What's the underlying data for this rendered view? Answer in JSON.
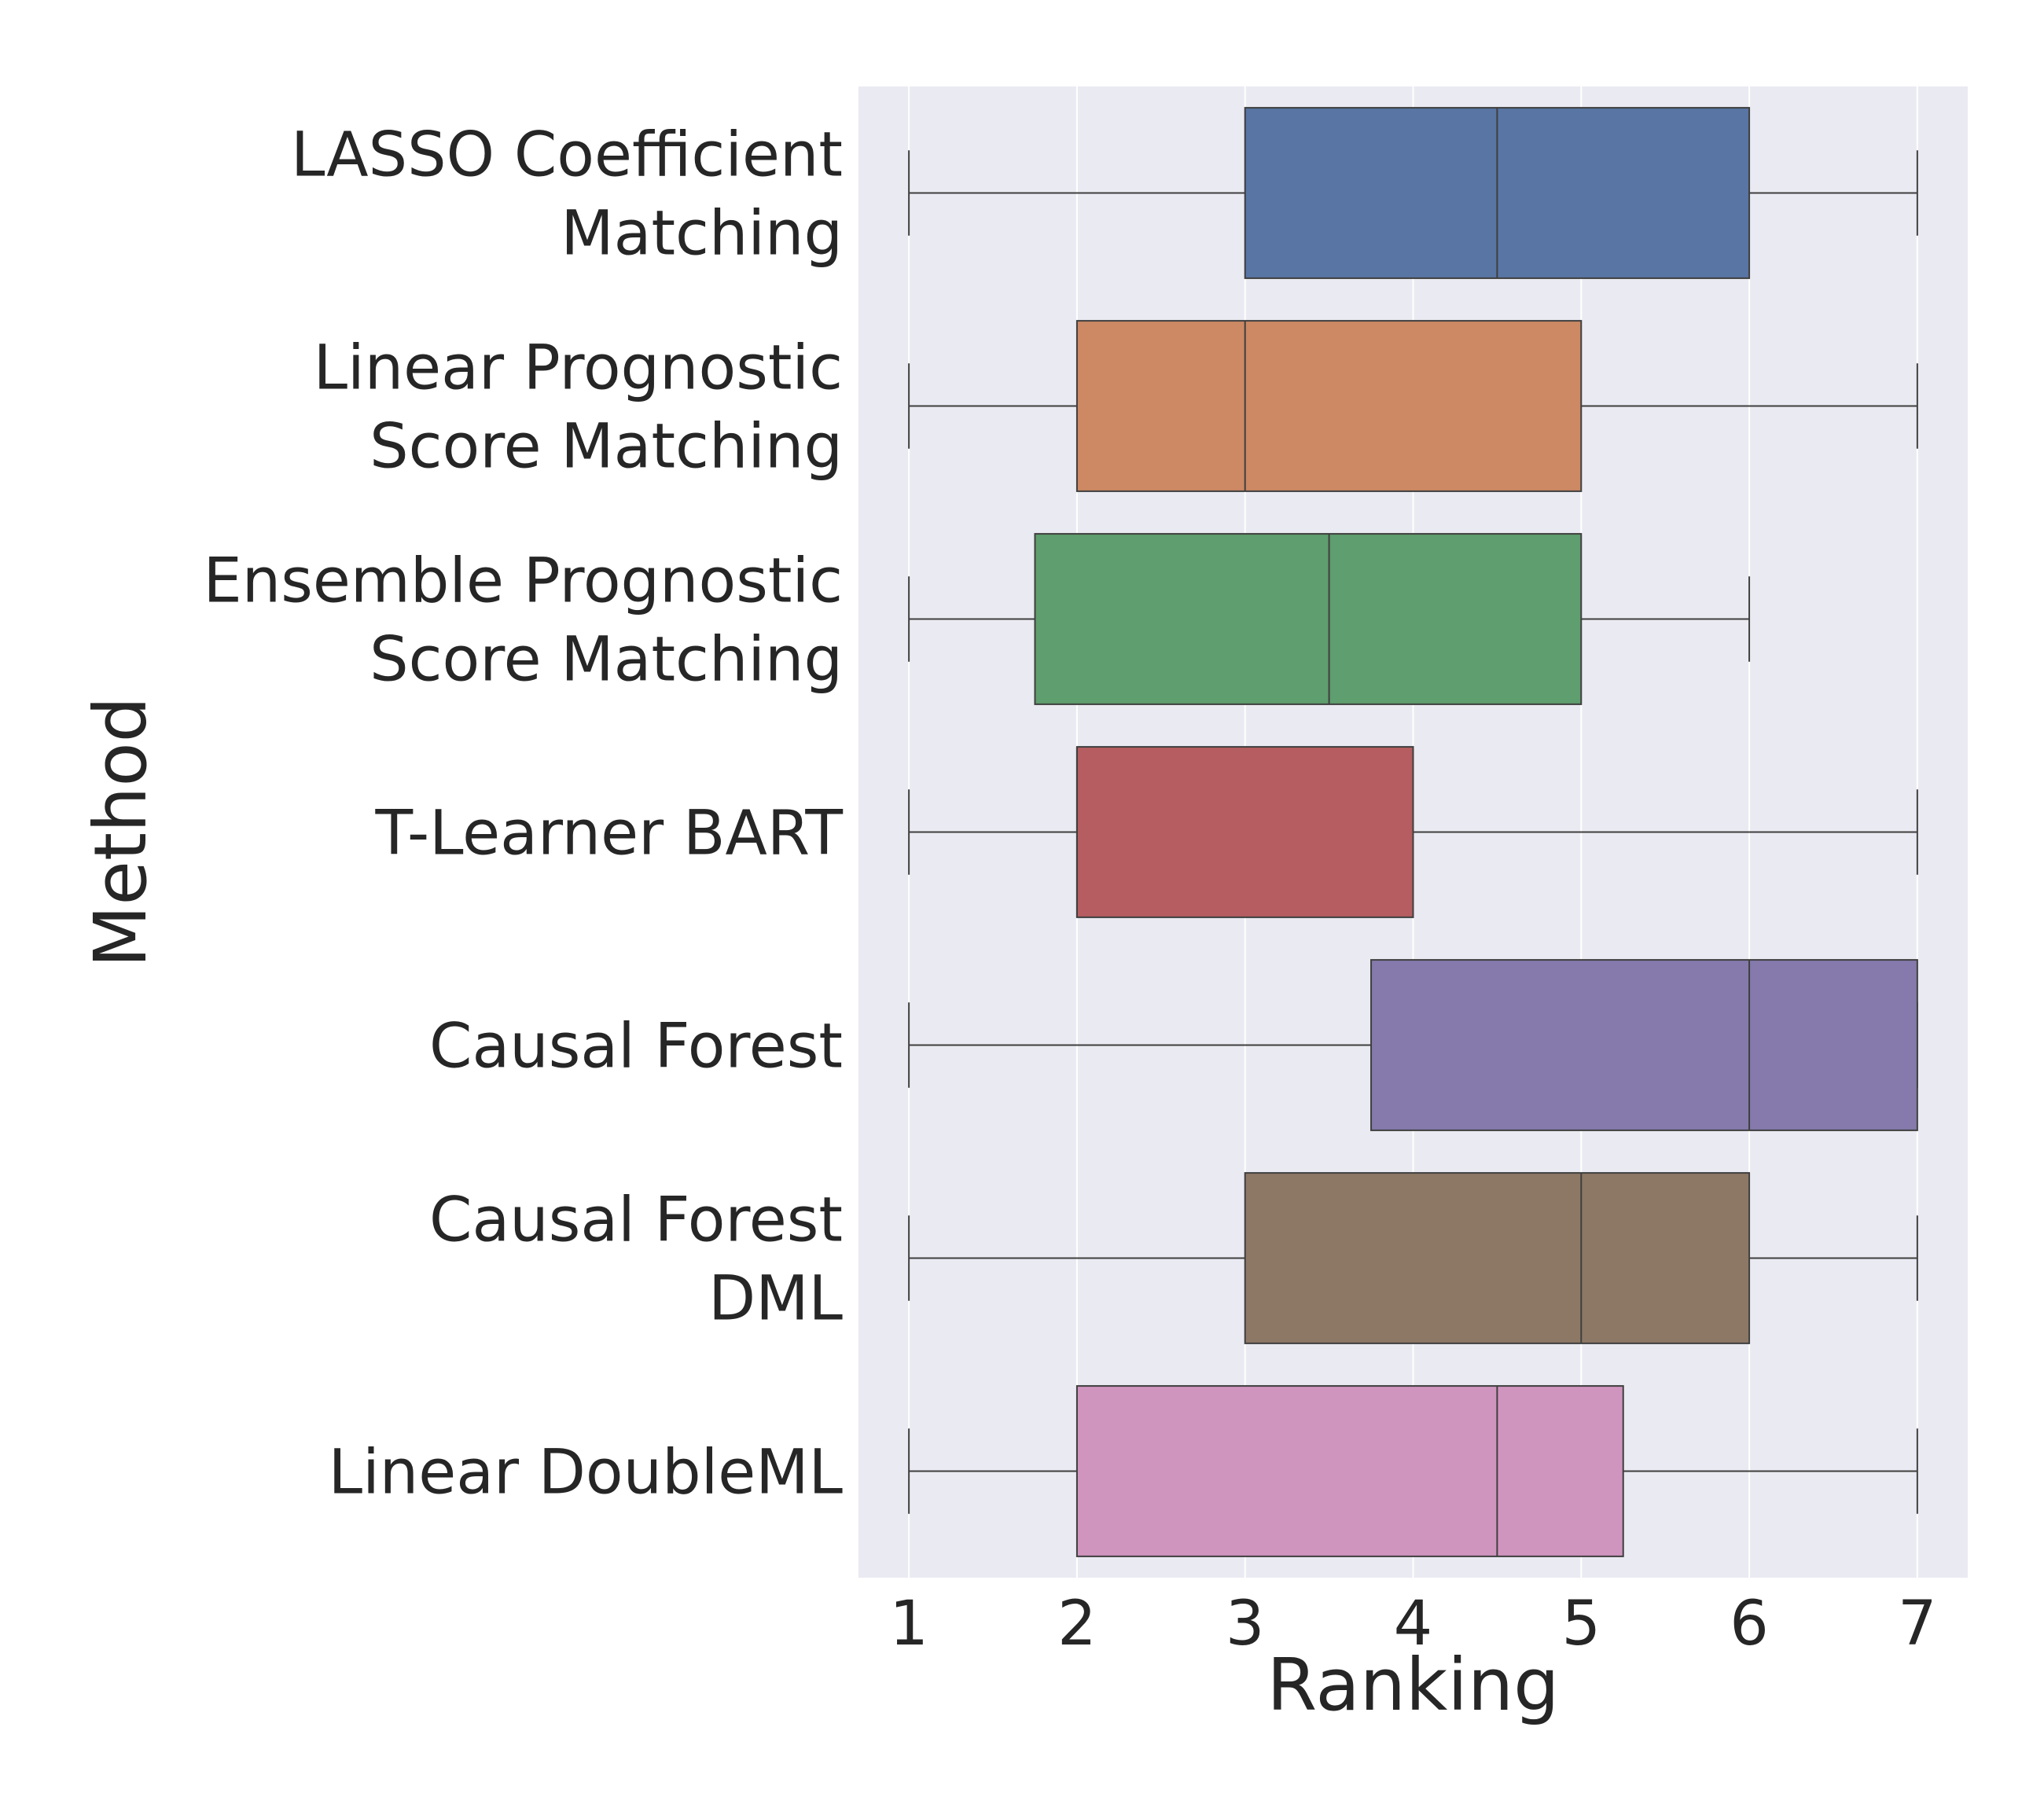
{
  "chart_data": {
    "type": "boxplot",
    "orientation": "horizontal",
    "xlabel": "Ranking",
    "ylabel": "Method",
    "xlim": [
      0.7,
      7.3
    ],
    "xticks": [
      1,
      2,
      3,
      4,
      5,
      6,
      7
    ],
    "grid": true,
    "background": "#eaeaf2",
    "series": [
      {
        "lines": [
          "LASSO Coefficient",
          "Matching"
        ],
        "whisker_low": 1,
        "q1": 3,
        "median": 4.5,
        "q3": 6,
        "whisker_high": 7,
        "color": "#5875a4"
      },
      {
        "lines": [
          "Linear Prognostic",
          "Score Matching"
        ],
        "whisker_low": 1,
        "q1": 2,
        "median": 3,
        "q3": 5,
        "whisker_high": 7,
        "color": "#cc8963"
      },
      {
        "lines": [
          "Ensemble Prognostic",
          "Score Matching"
        ],
        "whisker_low": 1,
        "q1": 1.75,
        "median": 3.5,
        "q3": 5,
        "whisker_high": 6,
        "color": "#5f9e6e"
      },
      {
        "lines": [
          "T-Learner BART"
        ],
        "whisker_low": 1,
        "q1": 2,
        "median": 2,
        "q3": 4,
        "whisker_high": 7,
        "color": "#b55d60"
      },
      {
        "lines": [
          "Causal Forest"
        ],
        "whisker_low": 1,
        "q1": 3.75,
        "median": 6,
        "q3": 7,
        "whisker_high": 7,
        "color": "#857aab"
      },
      {
        "lines": [
          "Causal Forest",
          "DML"
        ],
        "whisker_low": 1,
        "q1": 3,
        "median": 5,
        "q3": 6,
        "whisker_high": 7,
        "color": "#8d7866"
      },
      {
        "lines": [
          "Linear DoubleML"
        ],
        "whisker_low": 1,
        "q1": 2,
        "median": 4.5,
        "q3": 5.25,
        "whisker_high": 7,
        "color": "#d095bf"
      }
    ]
  }
}
